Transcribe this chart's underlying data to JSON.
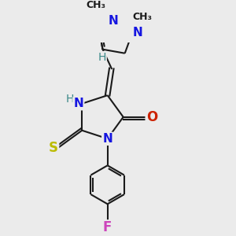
{
  "bg_color": "#ebebeb",
  "bond_color": "#1a1a1a",
  "bond_lw": 1.5,
  "dbo": 0.05,
  "colors": {
    "N": "#1515e0",
    "O": "#cc2200",
    "S": "#bbbb00",
    "F": "#cc44bb",
    "H": "#3a8888",
    "C": "#1a1a1a"
  }
}
